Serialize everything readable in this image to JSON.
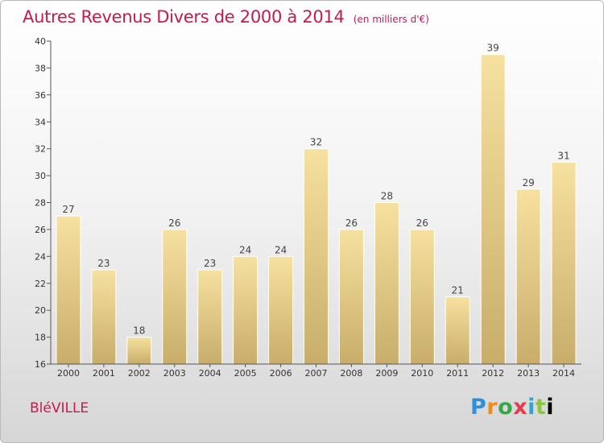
{
  "header": {
    "title": "Autres Revenus Divers de 2000 à 2014",
    "unit": "(en milliers d'€)"
  },
  "footer": {
    "commune": "BléVILLE",
    "logo": "Proxiti"
  },
  "colors": {
    "title": "#c8194f",
    "bar_light": "#f7e1a0",
    "bar_dark": "#c8ad6b"
  },
  "chart_data": {
    "type": "bar",
    "title": "Autres Revenus Divers de 2000 à 2014",
    "subtitle": "(en milliers d'€)",
    "xlabel": "",
    "ylabel": "",
    "categories": [
      "2000",
      "2001",
      "2002",
      "2003",
      "2004",
      "2005",
      "2006",
      "2007",
      "2008",
      "2009",
      "2010",
      "2011",
      "2012",
      "2013",
      "2014"
    ],
    "values": [
      27,
      23,
      18,
      26,
      23,
      24,
      24,
      32,
      26,
      28,
      26,
      21,
      39,
      29,
      31
    ],
    "ylim": [
      16,
      40
    ],
    "yticks": [
      16,
      18,
      20,
      22,
      24,
      26,
      28,
      30,
      32,
      34,
      36,
      38,
      40
    ],
    "grid": false,
    "data_labels": true
  }
}
